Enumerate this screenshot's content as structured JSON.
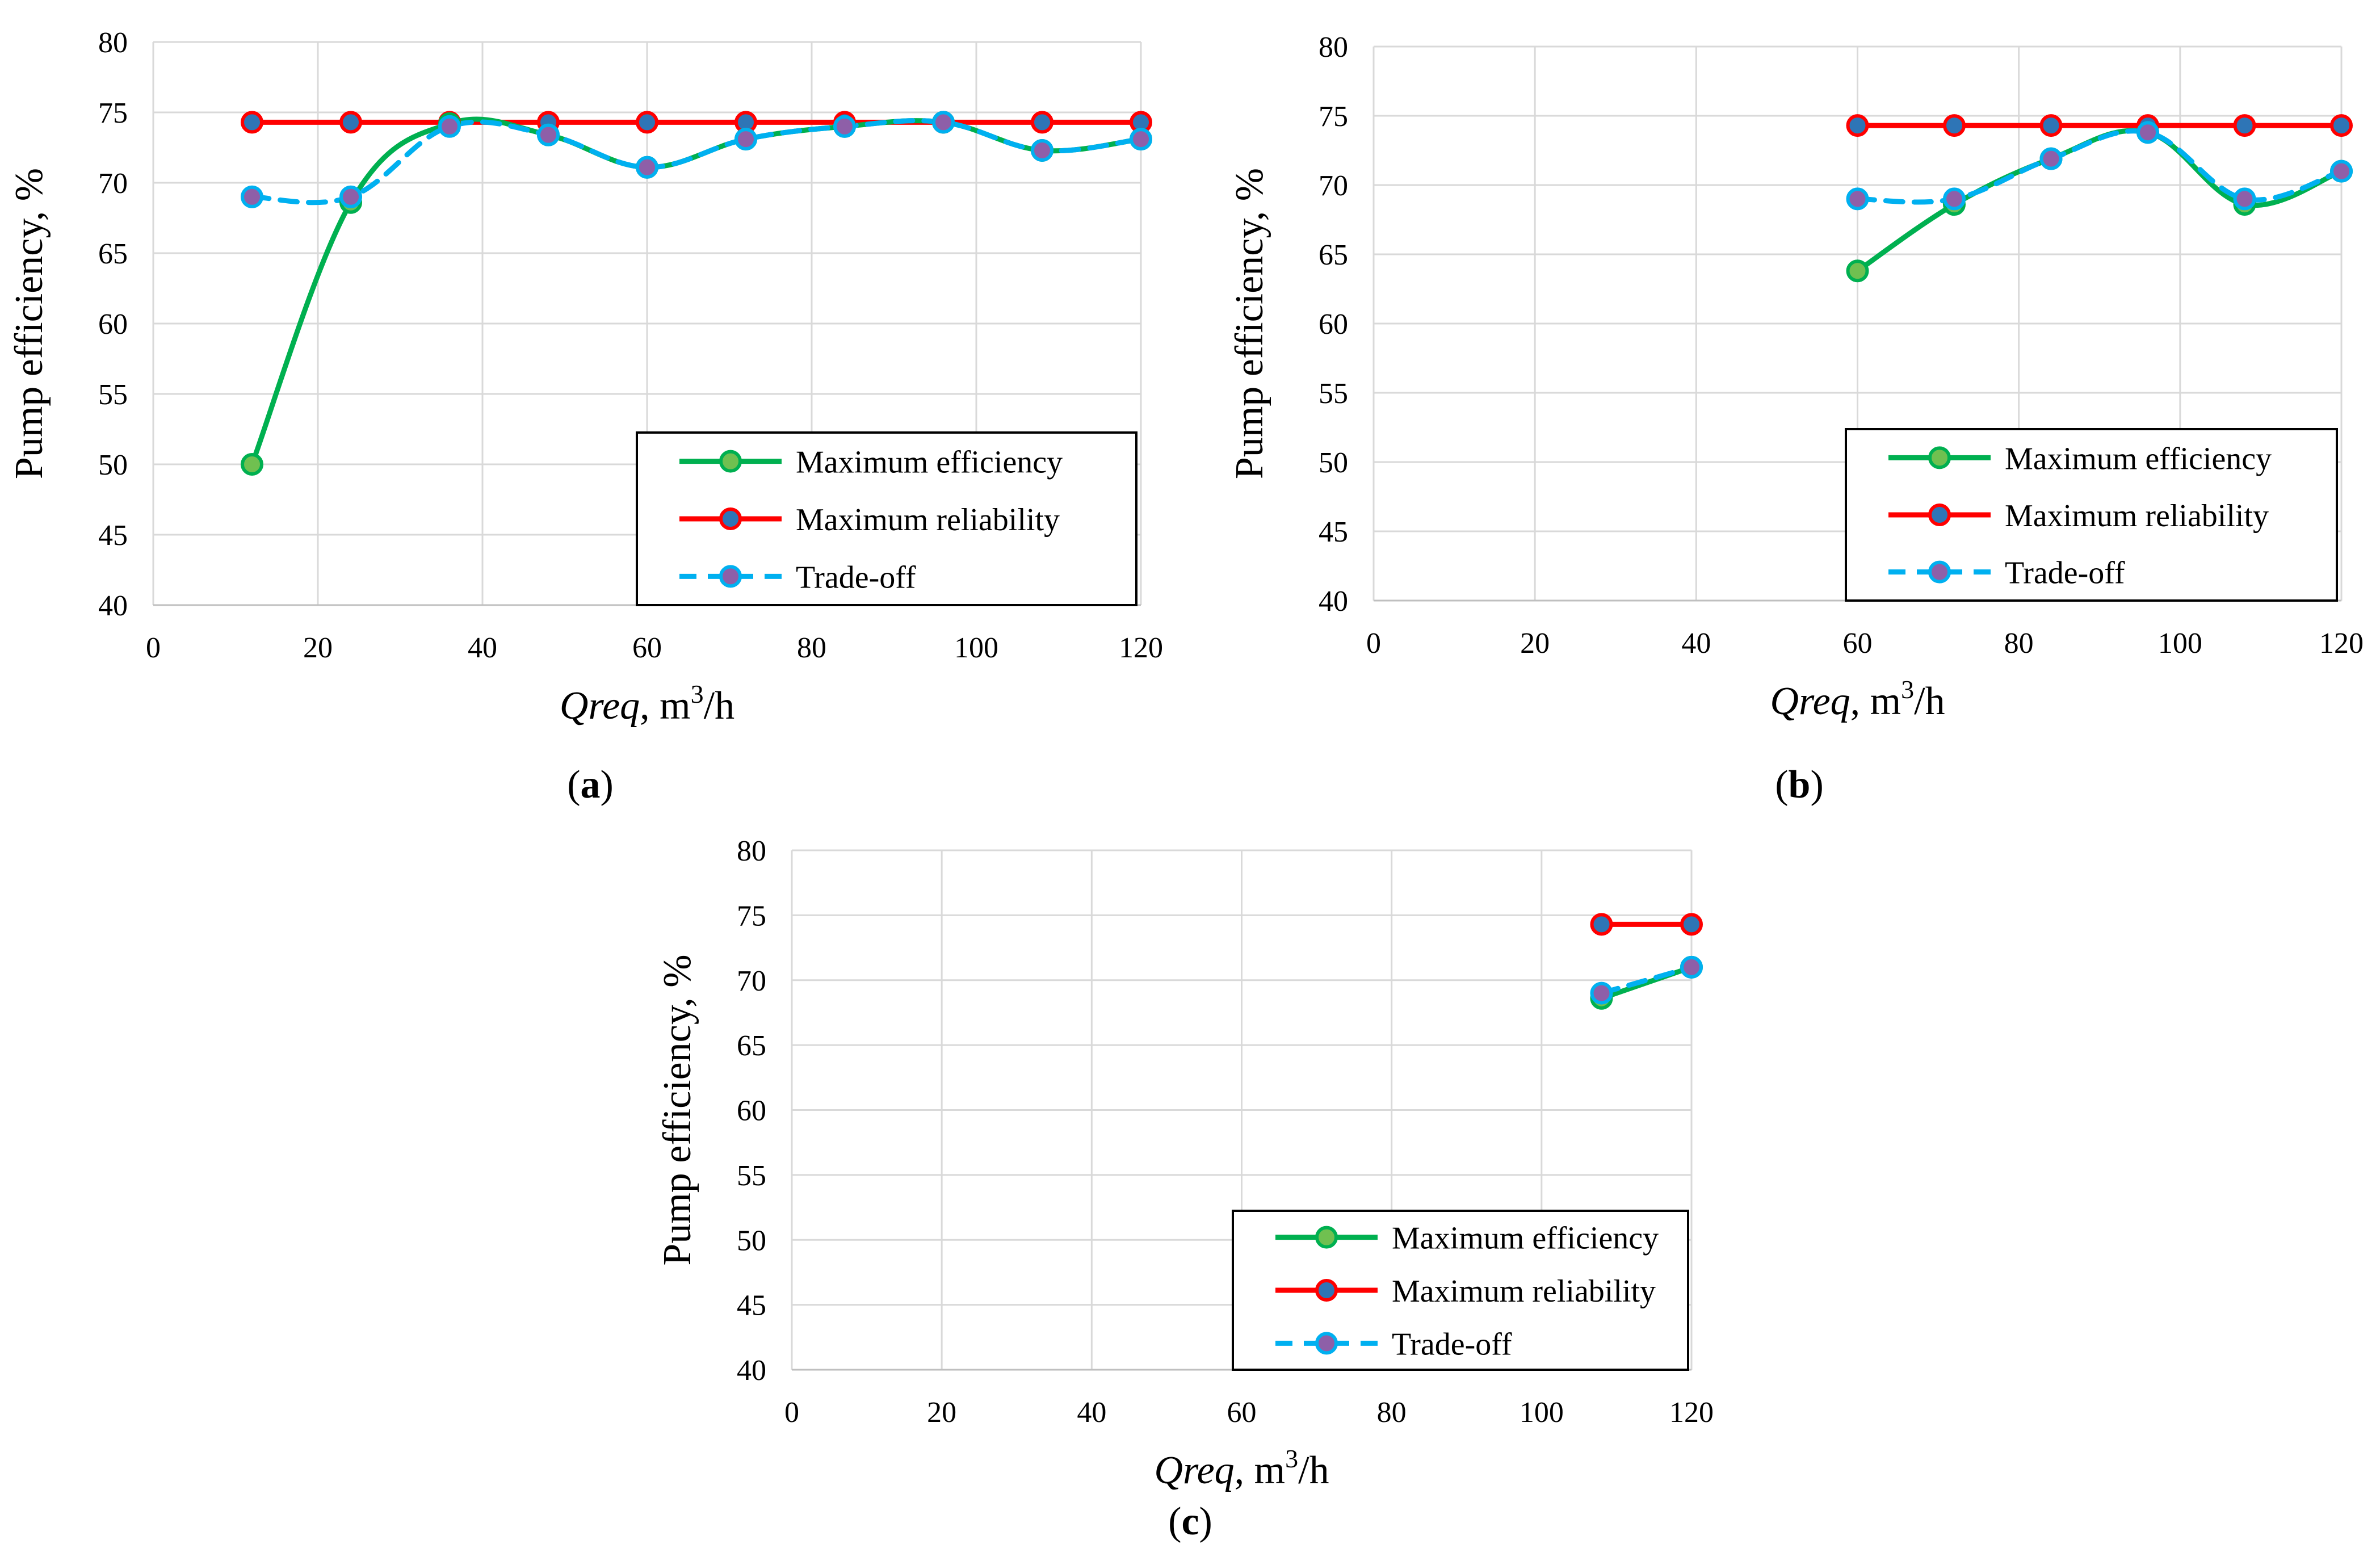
{
  "colors": {
    "max_efficiency_line": "#00B050",
    "max_efficiency_marker": "#70C050",
    "max_reliability_line": "#FF0000",
    "max_reliability_marker": "#2E75B6",
    "tradeoff_line": "#00B0F0",
    "tradeoff_marker": "#8E5FA8",
    "gridline": "#D9D9D9"
  },
  "chart_data": [
    {
      "type": "line",
      "panel_label": "a",
      "xlabel_italic": "Qreq",
      "xlabel_rest": ", m",
      "xlabel_sup": "3",
      "xlabel_tail": "/h",
      "ylabel": "Pump efficiency, %",
      "xlim": [
        0,
        120
      ],
      "ylim": [
        40,
        80
      ],
      "xticks": [
        "0",
        "20",
        "40",
        "60",
        "80",
        "100",
        "120"
      ],
      "yticks": [
        "40",
        "45",
        "50",
        "55",
        "60",
        "65",
        "70",
        "75",
        "80"
      ],
      "grid": true,
      "legend_position": "bottom-right",
      "series": [
        {
          "name": "Maximum efficiency",
          "style": "solid-smooth",
          "x": [
            12,
            24,
            36,
            48,
            60,
            72,
            84,
            96,
            108,
            120
          ],
          "y": [
            50.0,
            68.6,
            74.2,
            73.4,
            71.1,
            73.1,
            74.0,
            74.3,
            72.3,
            73.1
          ]
        },
        {
          "name": "Maximum reliability",
          "style": "solid",
          "x": [
            12,
            24,
            36,
            48,
            60,
            72,
            84,
            96,
            108,
            120
          ],
          "y": [
            74.3,
            74.3,
            74.3,
            74.3,
            74.3,
            74.3,
            74.3,
            74.3,
            74.3,
            74.3
          ]
        },
        {
          "name": "Trade-off",
          "style": "dashed",
          "x": [
            12,
            24,
            36,
            48,
            60,
            72,
            84,
            96,
            108,
            120
          ],
          "y": [
            69.0,
            69.0,
            74.0,
            73.4,
            71.1,
            73.1,
            74.0,
            74.3,
            72.3,
            73.1
          ]
        }
      ]
    },
    {
      "type": "line",
      "panel_label": "b",
      "xlabel_italic": "Qreq",
      "xlabel_rest": ", m",
      "xlabel_sup": "3",
      "xlabel_tail": "/h",
      "ylabel": "Pump efficiency, %",
      "xlim": [
        0,
        120
      ],
      "ylim": [
        40,
        80
      ],
      "xticks": [
        "0",
        "20",
        "40",
        "60",
        "80",
        "100",
        "120"
      ],
      "yticks": [
        "40",
        "45",
        "50",
        "55",
        "60",
        "65",
        "70",
        "75",
        "80"
      ],
      "grid": true,
      "legend_position": "bottom-right",
      "series": [
        {
          "name": "Maximum efficiency",
          "style": "solid-smooth",
          "x": [
            60,
            72,
            84,
            96,
            108,
            120
          ],
          "y": [
            63.8,
            68.6,
            71.9,
            73.8,
            68.6,
            71.0
          ]
        },
        {
          "name": "Maximum reliability",
          "style": "solid",
          "x": [
            60,
            72,
            84,
            96,
            108,
            120
          ],
          "y": [
            74.3,
            74.3,
            74.3,
            74.3,
            74.3,
            74.3
          ]
        },
        {
          "name": "Trade-off",
          "style": "dashed",
          "x": [
            60,
            72,
            84,
            96,
            108,
            120
          ],
          "y": [
            69.0,
            69.0,
            71.9,
            73.8,
            69.0,
            71.0
          ]
        }
      ]
    },
    {
      "type": "line",
      "panel_label": "c",
      "xlabel_italic": "Qreq",
      "xlabel_rest": ", m",
      "xlabel_sup": "3",
      "xlabel_tail": "/h",
      "ylabel": "Pump efficiency, %",
      "xlim": [
        0,
        120
      ],
      "ylim": [
        40,
        80
      ],
      "xticks": [
        "0",
        "20",
        "40",
        "60",
        "80",
        "100",
        "120"
      ],
      "yticks": [
        "40",
        "45",
        "50",
        "55",
        "60",
        "65",
        "70",
        "75",
        "80"
      ],
      "grid": true,
      "legend_position": "bottom-right",
      "series": [
        {
          "name": "Maximum efficiency",
          "style": "solid-smooth",
          "x": [
            108,
            120
          ],
          "y": [
            68.6,
            71.0
          ]
        },
        {
          "name": "Maximum reliability",
          "style": "solid",
          "x": [
            108,
            120
          ],
          "y": [
            74.3,
            74.3
          ]
        },
        {
          "name": "Trade-off",
          "style": "dashed",
          "x": [
            108,
            120
          ],
          "y": [
            69.0,
            71.0
          ]
        }
      ]
    }
  ]
}
